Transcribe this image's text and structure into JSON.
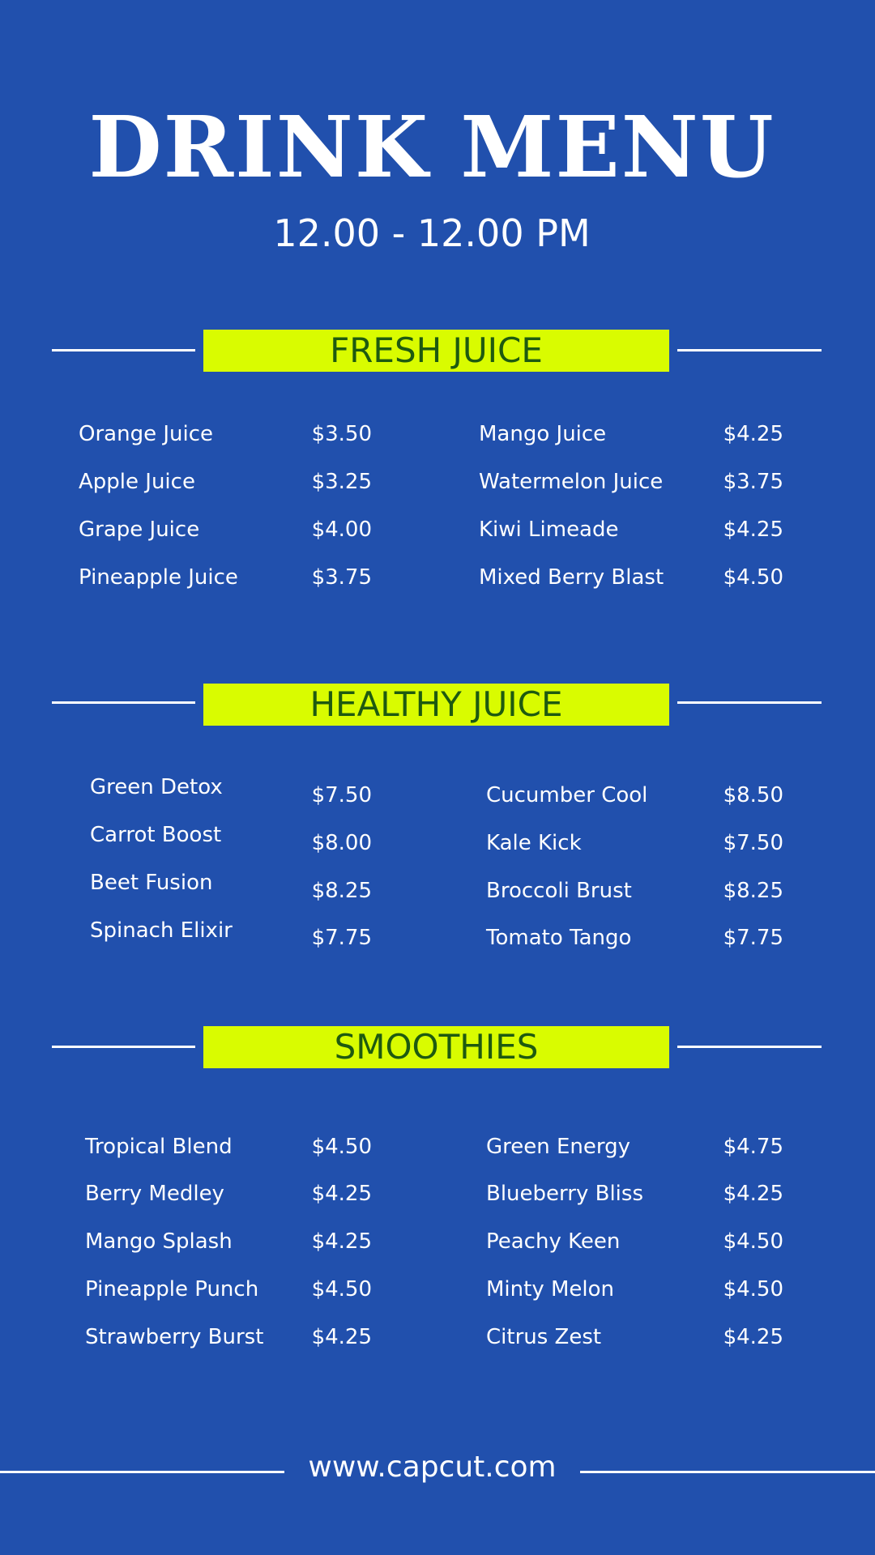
{
  "header": {
    "title": "DRINK MENU",
    "hours": "12.00 - 12.00 PM"
  },
  "colors": {
    "background": "#2150ad",
    "banner": "#d9fc00",
    "banner_text": "#1e5a10",
    "text": "#ffffff"
  },
  "sections": [
    {
      "title": "FRESH JUICE",
      "left": [
        {
          "name": "Orange Juice",
          "price": "$3.50"
        },
        {
          "name": "Apple Juice",
          "price": "$3.25"
        },
        {
          "name": "Grape Juice",
          "price": "$4.00"
        },
        {
          "name": "Pineapple Juice",
          "price": "$3.75"
        }
      ],
      "right": [
        {
          "name": "Mango Juice",
          "price": "$4.25"
        },
        {
          "name": "Watermelon Juice",
          "price": "$3.75"
        },
        {
          "name": "Kiwi Limeade",
          "price": "$4.25"
        },
        {
          "name": "Mixed Berry Blast",
          "price": "$4.50"
        }
      ]
    },
    {
      "title": "HEALTHY JUICE",
      "left": [
        {
          "name": "Green Detox",
          "price": "$7.50"
        },
        {
          "name": "Carrot Boost",
          "price": "$8.00"
        },
        {
          "name": "Beet Fusion",
          "price": "$8.25"
        },
        {
          "name": "Spinach Elixir",
          "price": "$7.75"
        }
      ],
      "right": [
        {
          "name": "Cucumber Cool",
          "price": "$8.50"
        },
        {
          "name": "Kale Kick",
          "price": "$7.50"
        },
        {
          "name": "Broccoli Brust",
          "price": "$8.25"
        },
        {
          "name": "Tomato Tango",
          "price": "$7.75"
        }
      ]
    },
    {
      "title": "SMOOTHIES",
      "left": [
        {
          "name": "Tropical Blend",
          "price": "$4.50"
        },
        {
          "name": "Berry Medley",
          "price": "$4.25"
        },
        {
          "name": "Mango Splash",
          "price": "$4.25"
        },
        {
          "name": "Pineapple Punch",
          "price": "$4.50"
        },
        {
          "name": "Strawberry Burst",
          "price": "$4.25"
        }
      ],
      "right": [
        {
          "name": "Green Energy",
          "price": "$4.75"
        },
        {
          "name": "Blueberry Bliss",
          "price": "$4.25"
        },
        {
          "name": "Peachy Keen",
          "price": "$4.50"
        },
        {
          "name": "Minty Melon",
          "price": "$4.50"
        },
        {
          "name": "Citrus Zest",
          "price": "$4.25"
        }
      ]
    }
  ],
  "footer": {
    "website": "www.capcut.com"
  }
}
